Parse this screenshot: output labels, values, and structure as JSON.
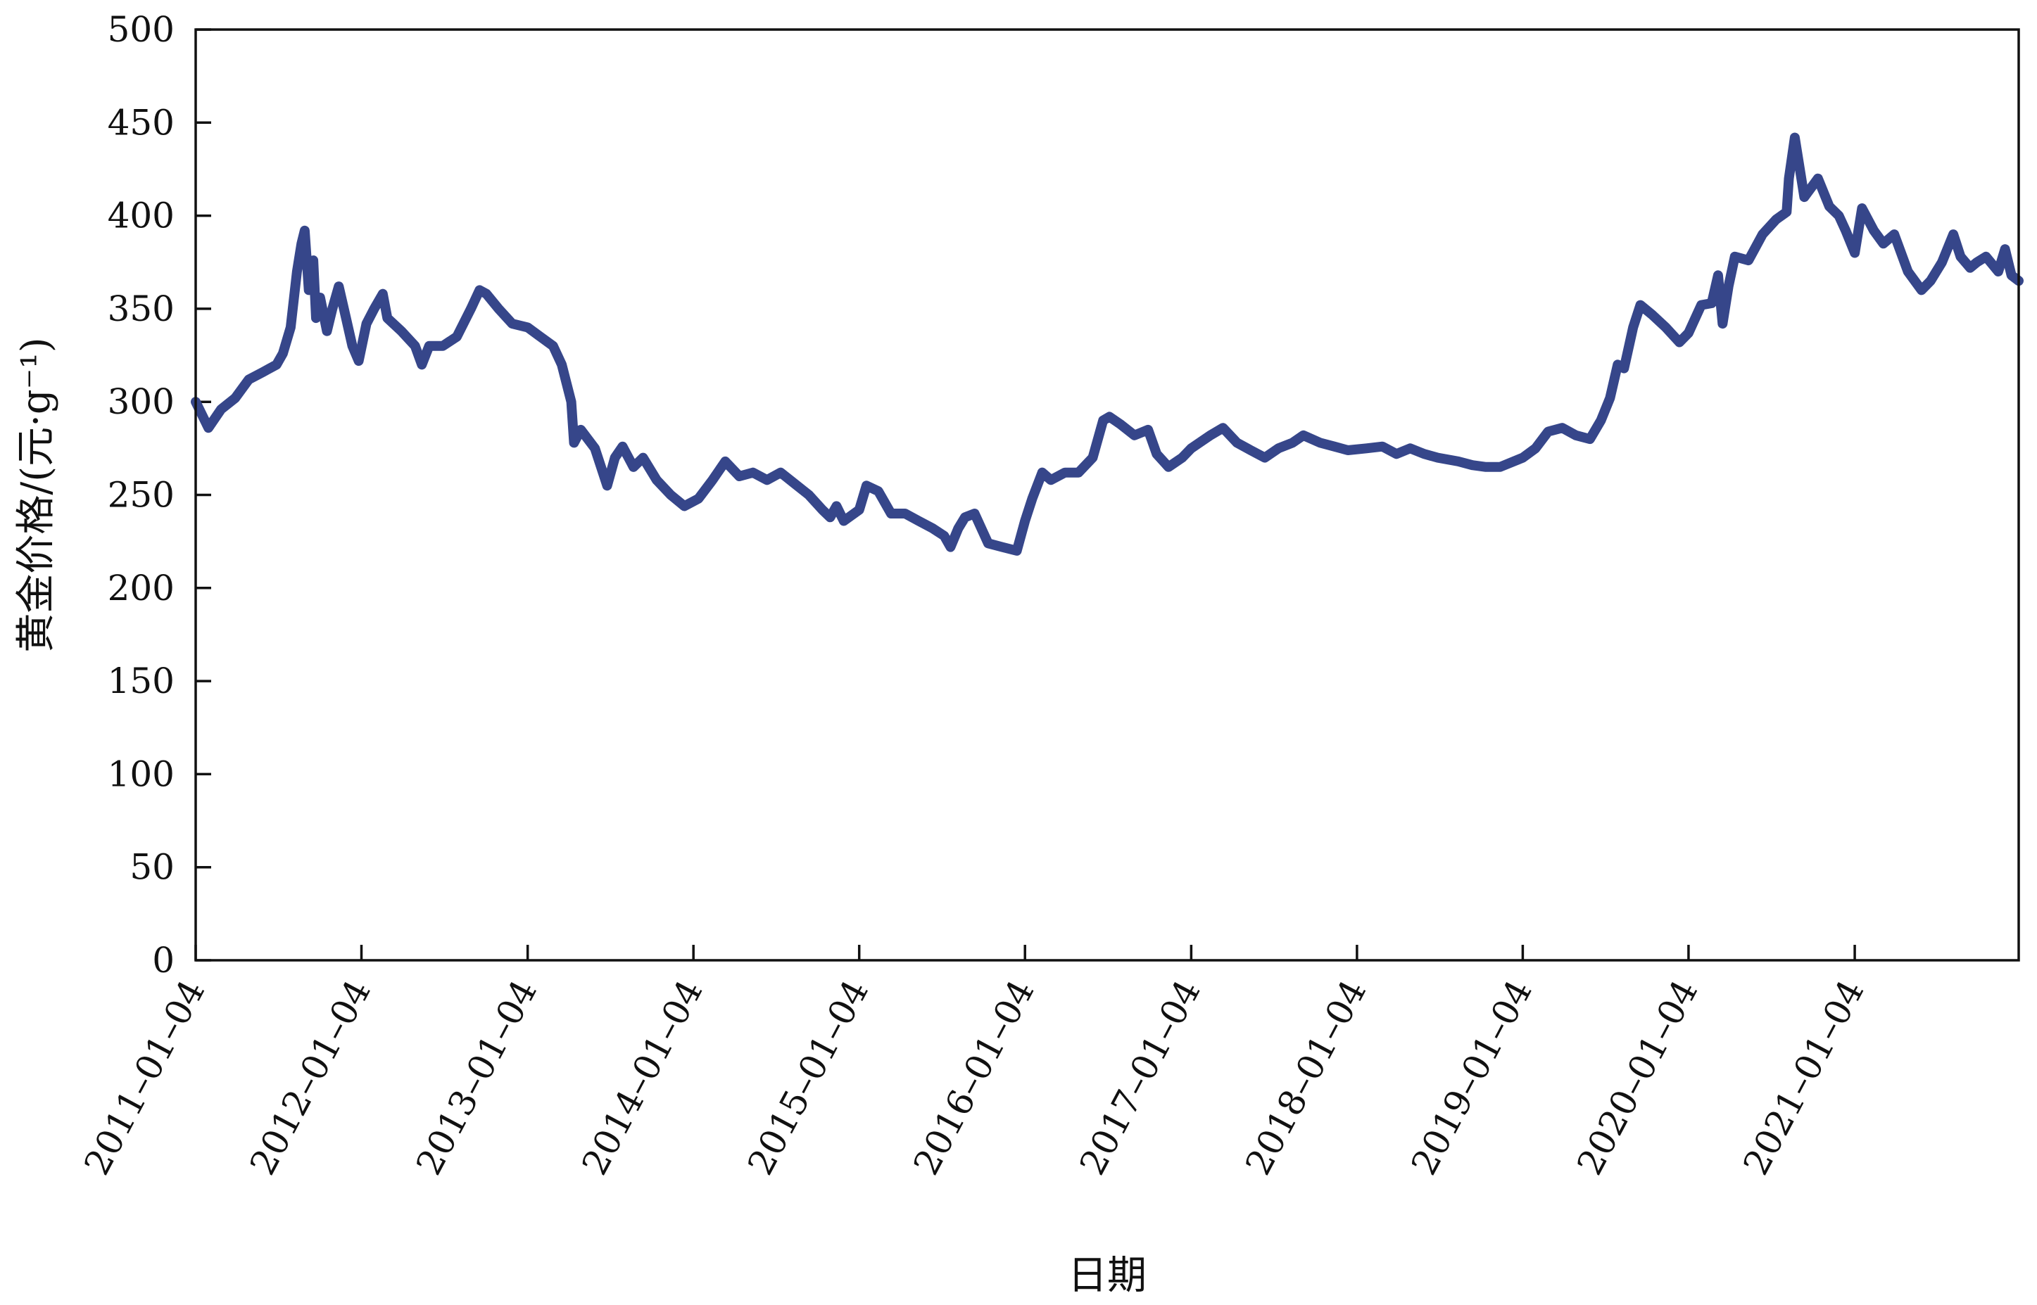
{
  "chart_data": {
    "type": "line",
    "xlabel": "日期",
    "ylabel": "黄金价格/(元·g⁻¹)",
    "ylim": [
      0,
      500
    ],
    "y_ticks": [
      0,
      50,
      100,
      150,
      200,
      250,
      300,
      350,
      400,
      450,
      500
    ],
    "x_ticks": [
      "2011-01-04",
      "2012-01-04",
      "2013-01-04",
      "2014-01-04",
      "2015-01-04",
      "2016-01-04",
      "2017-01-04",
      "2018-01-04",
      "2019-01-04",
      "2020-01-04",
      "2021-01-04"
    ],
    "x_tick_labels": [
      "2011–01–04",
      "2012–01–04",
      "2013–01–04",
      "2014–01–04",
      "2015–01–04",
      "2016–01–04",
      "2017–01–04",
      "2018–01–04",
      "2019–01–04",
      "2020–01–04",
      "2021–01–04"
    ],
    "xlim": [
      "2011-01-04",
      "2021-12-31"
    ],
    "grid": false,
    "series": [
      {
        "color": "#36468a",
        "x": [
          "2011-01-04",
          "2011-02-01",
          "2011-03-01",
          "2011-04-01",
          "2011-05-01",
          "2011-06-01",
          "2011-07-01",
          "2011-07-15",
          "2011-08-01",
          "2011-08-15",
          "2011-08-25",
          "2011-09-01",
          "2011-09-10",
          "2011-09-20",
          "2011-09-26",
          "2011-10-05",
          "2011-10-20",
          "2011-11-01",
          "2011-11-15",
          "2011-12-01",
          "2011-12-15",
          "2011-12-29",
          "2012-01-15",
          "2012-02-01",
          "2012-02-20",
          "2012-03-01",
          "2012-04-01",
          "2012-05-01",
          "2012-05-16",
          "2012-06-01",
          "2012-07-01",
          "2012-08-01",
          "2012-09-01",
          "2012-09-20",
          "2012-10-05",
          "2012-11-01",
          "2012-12-01",
          "2013-01-04",
          "2013-02-01",
          "2013-03-01",
          "2013-03-20",
          "2013-04-10",
          "2013-04-16",
          "2013-05-01",
          "2013-06-01",
          "2013-06-28",
          "2013-07-15",
          "2013-08-01",
          "2013-08-25",
          "2013-09-15",
          "2013-10-15",
          "2013-11-15",
          "2013-12-15",
          "2014-01-15",
          "2014-02-15",
          "2014-03-15",
          "2014-04-15",
          "2014-05-15",
          "2014-06-15",
          "2014-07-15",
          "2014-08-15",
          "2014-09-15",
          "2014-10-15",
          "2014-11-01",
          "2014-11-15",
          "2014-12-01",
          "2015-01-04",
          "2015-01-20",
          "2015-02-15",
          "2015-03-15",
          "2015-04-15",
          "2015-05-15",
          "2015-06-15",
          "2015-07-10",
          "2015-07-24",
          "2015-08-10",
          "2015-08-25",
          "2015-09-15",
          "2015-10-15",
          "2015-11-15",
          "2015-12-17",
          "2016-01-04",
          "2016-01-20",
          "2016-02-11",
          "2016-03-01",
          "2016-04-01",
          "2016-05-01",
          "2016-06-01",
          "2016-06-24",
          "2016-07-08",
          "2016-08-01",
          "2016-09-01",
          "2016-10-01",
          "2016-10-20",
          "2016-11-15",
          "2016-12-15",
          "2017-01-04",
          "2017-02-15",
          "2017-03-15",
          "2017-04-15",
          "2017-05-15",
          "2017-06-15",
          "2017-07-15",
          "2017-08-15",
          "2017-09-08",
          "2017-10-15",
          "2017-11-15",
          "2017-12-15",
          "2018-01-25",
          "2018-03-01",
          "2018-04-01",
          "2018-05-01",
          "2018-06-01",
          "2018-07-01",
          "2018-08-15",
          "2018-09-15",
          "2018-10-15",
          "2018-11-15",
          "2018-12-15",
          "2019-01-04",
          "2019-02-01",
          "2019-03-01",
          "2019-04-01",
          "2019-05-01",
          "2019-06-01",
          "2019-06-25",
          "2019-07-15",
          "2019-08-01",
          "2019-08-15",
          "2019-09-04",
          "2019-09-20",
          "2019-10-15",
          "2019-11-15",
          "2019-12-15",
          "2020-01-04",
          "2020-02-01",
          "2020-02-24",
          "2020-03-09",
          "2020-03-19",
          "2020-04-01",
          "2020-04-15",
          "2020-05-15",
          "2020-06-15",
          "2020-07-15",
          "2020-08-07",
          "2020-08-12",
          "2020-08-25",
          "2020-09-15",
          "2020-10-15",
          "2020-11-09",
          "2020-11-30",
          "2020-12-15",
          "2021-01-04",
          "2021-01-20",
          "2021-02-15",
          "2021-03-08",
          "2021-04-01",
          "2021-05-01",
          "2021-05-31",
          "2021-06-20",
          "2021-07-15",
          "2021-08-09",
          "2021-08-25",
          "2021-09-15",
          "2021-09-30",
          "2021-10-20",
          "2021-11-16",
          "2021-12-01",
          "2021-12-15",
          "2021-12-31"
        ],
        "y": [
          300,
          286,
          296,
          302,
          312,
          316,
          320,
          326,
          340,
          370,
          385,
          392,
          360,
          376,
          345,
          356,
          338,
          350,
          362,
          345,
          330,
          322,
          342,
          350,
          358,
          345,
          338,
          330,
          320,
          330,
          330,
          335,
          350,
          360,
          358,
          350,
          342,
          340,
          335,
          330,
          320,
          300,
          278,
          285,
          275,
          255,
          270,
          276,
          265,
          270,
          258,
          250,
          244,
          248,
          258,
          268,
          260,
          262,
          258,
          262,
          256,
          250,
          242,
          238,
          244,
          236,
          242,
          255,
          252,
          240,
          240,
          236,
          232,
          228,
          222,
          232,
          238,
          240,
          224,
          222,
          220,
          236,
          248,
          262,
          258,
          262,
          262,
          270,
          290,
          292,
          288,
          282,
          285,
          272,
          265,
          270,
          275,
          282,
          286,
          278,
          274,
          270,
          275,
          278,
          282,
          278,
          276,
          274,
          275,
          276,
          272,
          275,
          272,
          270,
          268,
          266,
          265,
          265,
          268,
          270,
          275,
          284,
          286,
          282,
          280,
          290,
          302,
          320,
          318,
          340,
          352,
          347,
          340,
          332,
          337,
          352,
          353,
          368,
          342,
          362,
          378,
          376,
          390,
          398,
          402,
          420,
          442,
          410,
          420,
          405,
          400,
          392,
          380,
          404,
          392,
          385,
          390,
          370,
          360,
          365,
          375,
          390,
          378,
          372,
          375,
          378,
          370,
          382,
          368,
          365
        ]
      }
    ]
  }
}
